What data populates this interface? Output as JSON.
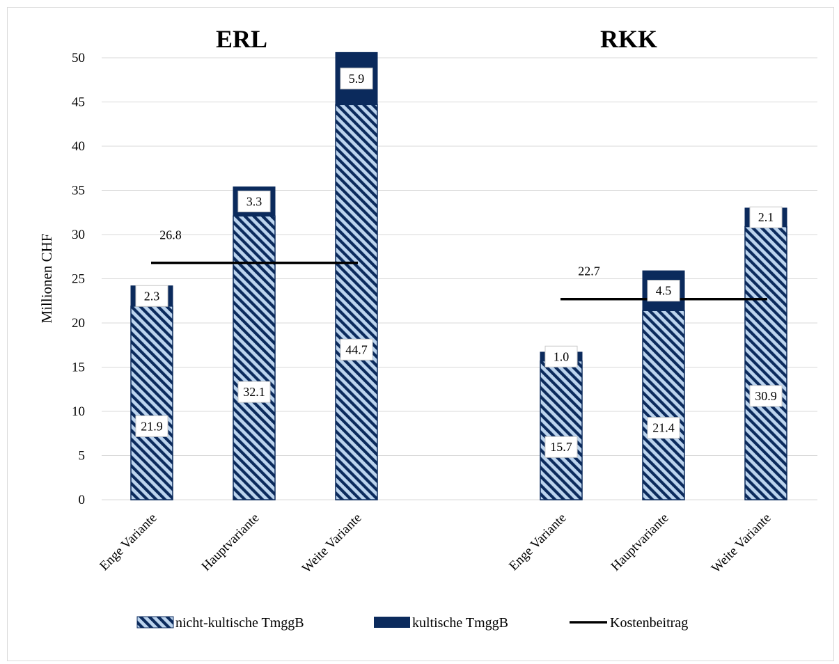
{
  "chart_data": {
    "type": "bar",
    "stacked": true,
    "ylabel": "Millionen CHF",
    "ylim": [
      0,
      50
    ],
    "yticks": [
      0,
      5,
      10,
      15,
      20,
      25,
      30,
      35,
      40,
      45,
      50
    ],
    "grid": true,
    "legend_position": "bottom",
    "colors": {
      "nicht_kultisch_fill": "#bcd4ee",
      "nicht_kultisch_hatch": "#0b2a5c",
      "kultisch": "#0b2a5c",
      "kostenbeitrag": "#000000"
    },
    "legend": [
      "nicht-kultische TmggB",
      "kultische TmggB",
      "Kostenbeitrag"
    ],
    "groups": [
      {
        "title": "ERL",
        "categories": [
          "Enge Variante",
          "Hauptvariante",
          "Weite Variante"
        ],
        "series": [
          {
            "name": "nicht-kultische TmggB",
            "values": [
              21.9,
              32.1,
              44.7
            ],
            "labels": [
              "21.9",
              "32.1",
              "44.7"
            ]
          },
          {
            "name": "kultische TmggB",
            "values": [
              2.3,
              3.3,
              5.9
            ],
            "labels": [
              "2.3",
              "3.3",
              "5.9"
            ]
          }
        ],
        "kostenbeitrag": {
          "value": 26.8,
          "label": "26.8"
        }
      },
      {
        "title": "RKK",
        "categories": [
          "Enge Variante",
          "Hauptvariante",
          "Weite Variante"
        ],
        "series": [
          {
            "name": "nicht-kultische TmggB",
            "values": [
              15.7,
              21.4,
              30.9
            ],
            "labels": [
              "15.7",
              "21.4",
              "30.9"
            ]
          },
          {
            "name": "kultische TmggB",
            "values": [
              1.0,
              4.5,
              2.1
            ],
            "labels": [
              "1.0",
              "4.5",
              "2.1"
            ]
          }
        ],
        "kostenbeitrag": {
          "value": 22.7,
          "label": "22.7"
        }
      }
    ]
  }
}
